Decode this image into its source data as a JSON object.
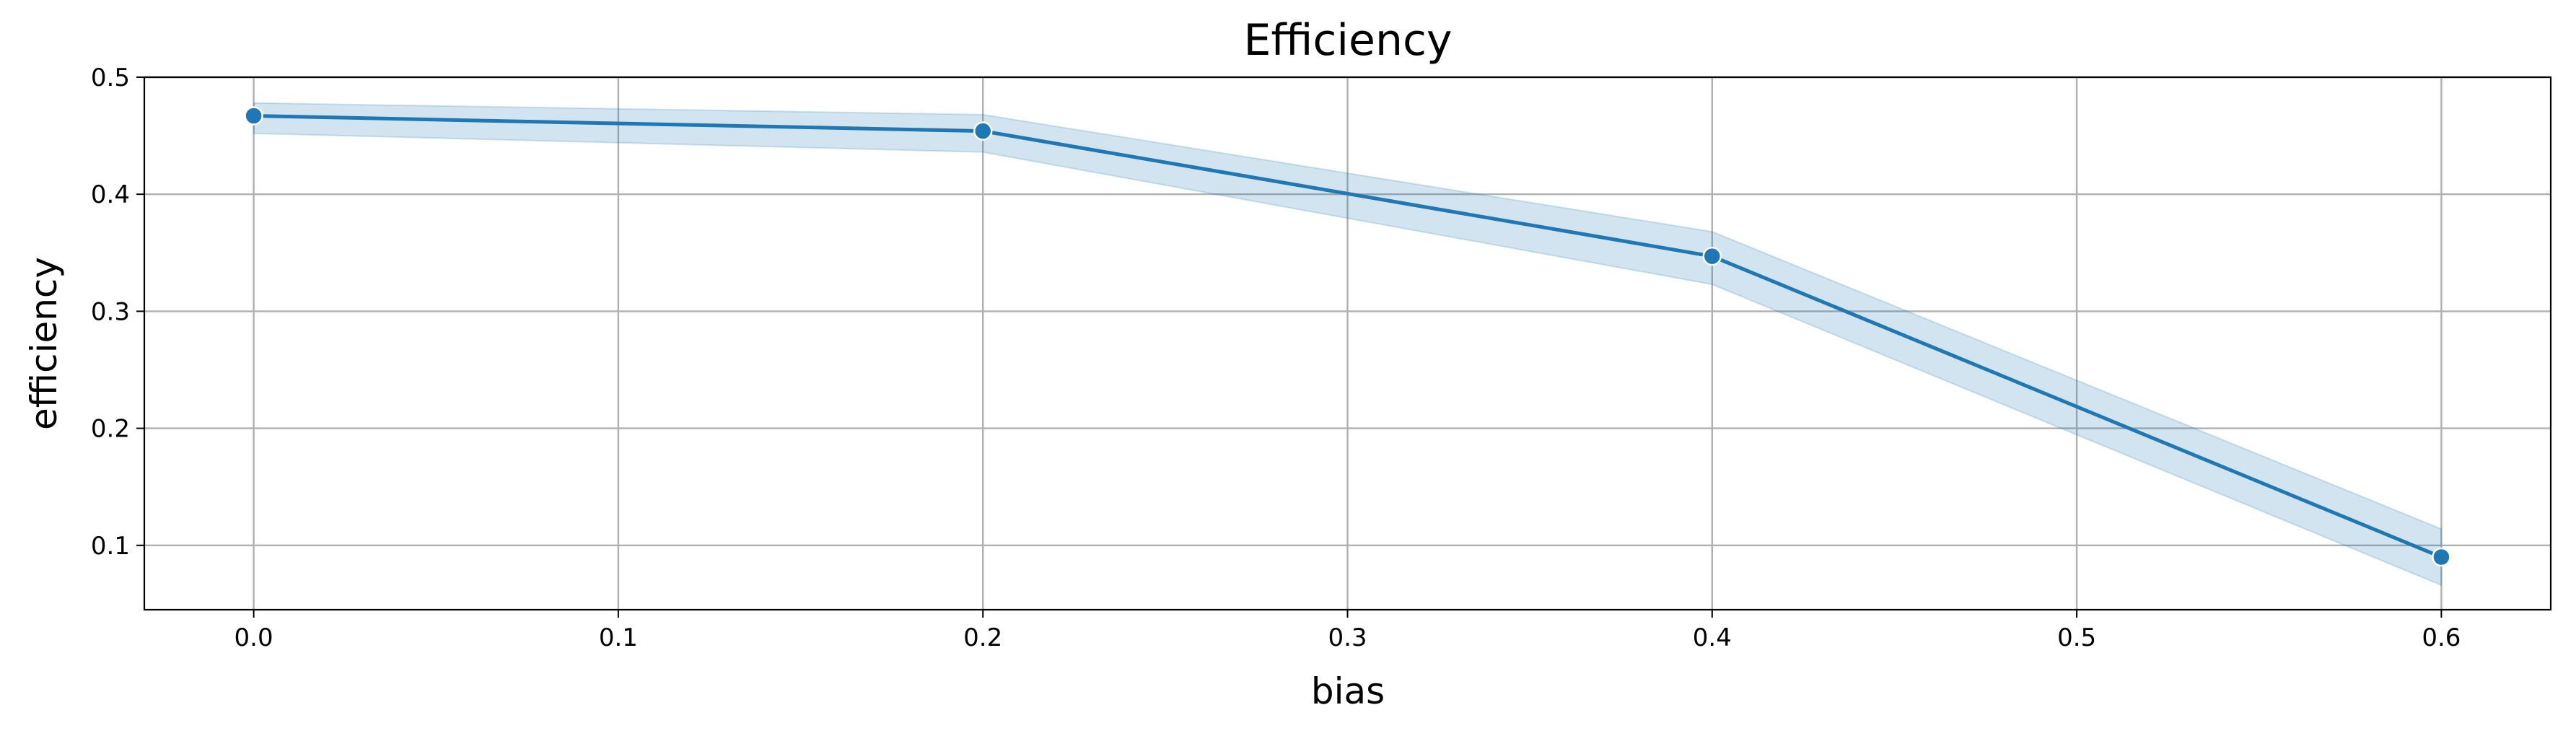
{
  "chart_data": {
    "type": "line",
    "title": "Efficiency",
    "xlabel": "bias",
    "ylabel": "efficiency",
    "xlim": [
      -0.03,
      0.63
    ],
    "ylim": [
      0.045,
      0.5
    ],
    "x_ticks": [
      "0.0",
      "0.1",
      "0.2",
      "0.3",
      "0.4",
      "0.5",
      "0.6"
    ],
    "y_ticks": [
      "0.1",
      "0.2",
      "0.3",
      "0.4",
      "0.5"
    ],
    "grid": true,
    "legend": false,
    "series": [
      {
        "color": "#1f77b4",
        "marker": "circle",
        "x": [
          0.0,
          0.2,
          0.4,
          0.6
        ],
        "y": [
          0.467,
          0.454,
          0.347,
          0.09
        ],
        "ci_lower": [
          0.452,
          0.436,
          0.323,
          0.066
        ],
        "ci_upper": [
          0.478,
          0.468,
          0.368,
          0.114
        ]
      }
    ]
  }
}
